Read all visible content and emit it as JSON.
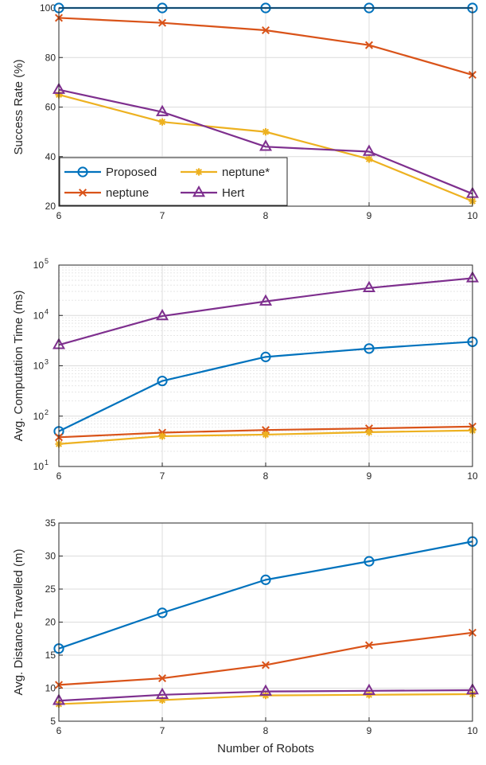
{
  "chart_data": [
    {
      "type": "line",
      "xlabel": "",
      "ylabel": "Success Rate (%)",
      "x": [
        6,
        7,
        8,
        9,
        10
      ],
      "xlim": [
        6,
        10
      ],
      "ylim": [
        20,
        100
      ],
      "yticks": [
        20,
        40,
        60,
        80,
        100
      ],
      "yscale": "linear",
      "grid": true,
      "legend": "bottom-left",
      "series": [
        {
          "name": "Proposed",
          "values": [
            100,
            100,
            100,
            100,
            100
          ],
          "color": "#0072BD",
          "marker": "circle"
        },
        {
          "name": "neptune",
          "values": [
            96,
            94,
            91,
            85,
            73
          ],
          "color": "#D95319",
          "marker": "x"
        },
        {
          "name": "neptune*",
          "values": [
            65,
            54,
            50,
            39,
            22
          ],
          "color": "#EDB120",
          "marker": "asterisk"
        },
        {
          "name": "Hert",
          "values": [
            67,
            58,
            44,
            42,
            25
          ],
          "color": "#7E2F8E",
          "marker": "triangle"
        }
      ]
    },
    {
      "type": "line",
      "xlabel": "",
      "ylabel": "Avg. Computation Time (ms)",
      "x": [
        6,
        7,
        8,
        9,
        10
      ],
      "xlim": [
        6,
        10
      ],
      "ylim": [
        10,
        100000
      ],
      "yscale": "log",
      "ytick_base": "10",
      "ytick_exponents": [
        "1",
        "2",
        "3",
        "4",
        "5"
      ],
      "grid": true,
      "series": [
        {
          "name": "Proposed",
          "values": [
            50,
            500,
            1500,
            2200,
            3000
          ],
          "color": "#0072BD",
          "marker": "circle"
        },
        {
          "name": "neptune",
          "values": [
            38,
            47,
            53,
            57,
            62
          ],
          "color": "#D95319",
          "marker": "x"
        },
        {
          "name": "neptune*",
          "values": [
            28,
            40,
            43,
            48,
            52
          ],
          "color": "#EDB120",
          "marker": "asterisk"
        },
        {
          "name": "Hert",
          "values": [
            2600,
            9700,
            19000,
            35000,
            55000
          ],
          "color": "#7E2F8E",
          "marker": "triangle"
        }
      ]
    },
    {
      "type": "line",
      "xlabel": "Number of Robots",
      "ylabel": "Avg. Distance Travelled (m)",
      "x": [
        6,
        7,
        8,
        9,
        10
      ],
      "xlim": [
        6,
        10
      ],
      "ylim": [
        5,
        35
      ],
      "yticks": [
        5,
        10,
        15,
        20,
        25,
        30,
        35
      ],
      "yscale": "linear",
      "grid": true,
      "series": [
        {
          "name": "Proposed",
          "values": [
            16,
            21.4,
            26.4,
            29.2,
            32.2
          ],
          "color": "#0072BD",
          "marker": "circle"
        },
        {
          "name": "neptune",
          "values": [
            10.5,
            11.5,
            13.5,
            16.5,
            18.4
          ],
          "color": "#D95319",
          "marker": "x"
        },
        {
          "name": "neptune*",
          "values": [
            7.6,
            8.2,
            8.9,
            9.0,
            9.1
          ],
          "color": "#EDB120",
          "marker": "asterisk"
        },
        {
          "name": "Hert",
          "values": [
            8.1,
            9.0,
            9.5,
            9.6,
            9.7
          ],
          "color": "#7E2F8E",
          "marker": "triangle"
        }
      ]
    }
  ]
}
